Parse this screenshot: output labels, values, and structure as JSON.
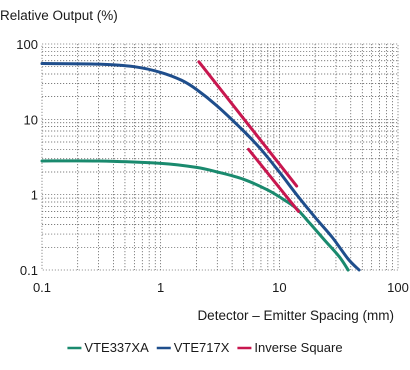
{
  "chart_data": {
    "type": "line",
    "ylabel": "Relative Output (%)",
    "xlabel": "Detector – Emitter Spacing (mm)",
    "x_scale": "log",
    "y_scale": "log",
    "xlim": [
      0.1,
      100
    ],
    "ylim": [
      0.1,
      100
    ],
    "x_ticks": [
      0.1,
      1,
      10,
      100
    ],
    "x_tick_labels": [
      "0.1",
      "1",
      "10",
      "100"
    ],
    "y_ticks": [
      0.1,
      1,
      10,
      100
    ],
    "y_tick_labels": [
      "0.1",
      "1",
      "10",
      "100"
    ],
    "grid": true,
    "legend_position": "bottom",
    "series": [
      {
        "name": "VTE337XA",
        "color": "#1a8a6e",
        "x": [
          0.1,
          0.3,
          1,
          2,
          3,
          5,
          8,
          11,
          14,
          18,
          24,
          32,
          38
        ],
        "y": [
          2.8,
          2.8,
          2.6,
          2.3,
          2.0,
          1.6,
          1.15,
          0.85,
          0.65,
          0.42,
          0.25,
          0.15,
          0.1
        ]
      },
      {
        "name": "VTE717X",
        "color": "#1f4e8c",
        "x": [
          0.1,
          0.3,
          0.6,
          1,
          1.5,
          2,
          3,
          5,
          7,
          10,
          14,
          20,
          28,
          38,
          47
        ],
        "y": [
          55,
          54,
          50,
          42,
          33,
          25,
          15,
          7,
          4,
          2.0,
          1.0,
          0.5,
          0.27,
          0.14,
          0.1
        ]
      },
      {
        "name": "Inverse Square",
        "color": "#c8174f",
        "x": [
          2.1,
          14
        ],
        "y": [
          58,
          1.3
        ]
      },
      {
        "name": "Inverse Square",
        "color": "#c8174f",
        "x": [
          5.5,
          14.5
        ],
        "y": [
          4.0,
          0.6
        ]
      }
    ]
  }
}
